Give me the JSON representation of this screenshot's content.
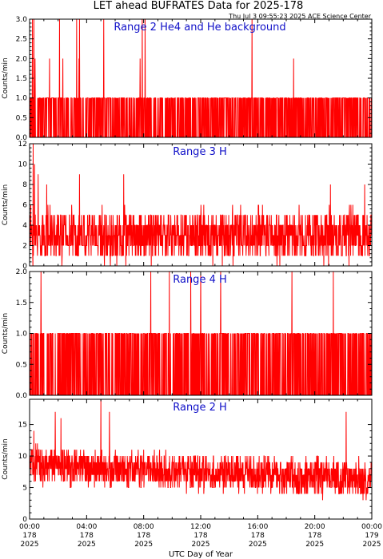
{
  "title": "LET ahead BUFRATES Data for 2025-178",
  "timestamp": "Thu Jul  3 09:55:23 2025 ACE Science Center",
  "xlabel": "UTC Day of Year",
  "x_ticks": [
    {
      "time": "00:00",
      "day": "178",
      "year": "2025"
    },
    {
      "time": "04:00",
      "day": "178",
      "year": "2025"
    },
    {
      "time": "08:00",
      "day": "178",
      "year": "2025"
    },
    {
      "time": "12:00",
      "day": "178",
      "year": "2025"
    },
    {
      "time": "16:00",
      "day": "178",
      "year": "2025"
    },
    {
      "time": "20:00",
      "day": "178",
      "year": "2025"
    },
    {
      "time": "00:00",
      "day": "179",
      "year": "2025"
    }
  ],
  "colors": {
    "line": "#ff0000",
    "label": "#1010c8",
    "axes": "#000000"
  },
  "chart_data": [
    {
      "type": "line",
      "label": "Range 2 He4 and He background",
      "ylabel": "Counts/min",
      "x_range": [
        0,
        24
      ],
      "ylim": [
        0,
        3
      ],
      "yticks": [
        "0.0",
        "0.5",
        "1.0",
        "1.5",
        "2.0",
        "2.5",
        "3.0"
      ],
      "baseline": 0.45,
      "spread": 0.85,
      "spikes": [
        [
          0.2,
          3
        ],
        [
          0.3,
          3
        ],
        [
          2.1,
          3
        ],
        [
          3.3,
          3
        ],
        [
          3.5,
          3
        ],
        [
          5.2,
          3
        ],
        [
          7.9,
          3
        ],
        [
          8.1,
          3
        ],
        [
          15.6,
          3
        ]
      ],
      "integer": true
    },
    {
      "type": "line",
      "label": "Range 3 H",
      "ylabel": "Counts/min",
      "x_range": [
        0,
        24
      ],
      "ylim": [
        0,
        12
      ],
      "yticks": [
        "0",
        "2",
        "4",
        "6",
        "8",
        "10",
        "12"
      ],
      "baseline": 3.0,
      "spread": 2.2,
      "spikes": [
        [
          0.25,
          12
        ],
        [
          0.35,
          10
        ],
        [
          0.6,
          9
        ],
        [
          1.2,
          8
        ],
        [
          3.5,
          9
        ],
        [
          6.6,
          9
        ],
        [
          21.1,
          8
        ],
        [
          23.5,
          8
        ]
      ],
      "integer": true
    },
    {
      "type": "line",
      "label": "Range 4 H",
      "ylabel": "Counts/min",
      "x_range": [
        0,
        24
      ],
      "ylim": [
        0,
        2
      ],
      "yticks": [
        "0.0",
        "0.5",
        "1.0",
        "1.5",
        "2.0"
      ],
      "baseline": 0.35,
      "spread": 0.75,
      "spikes": [
        [
          0.8,
          2
        ],
        [
          8.5,
          2
        ],
        [
          9.8,
          2
        ],
        [
          11.3,
          2
        ],
        [
          12.0,
          2
        ],
        [
          13.4,
          2
        ],
        [
          18.4,
          2
        ],
        [
          21.3,
          2
        ]
      ],
      "integer": true
    },
    {
      "type": "line",
      "label": "Range 2 H",
      "ylabel": "Counts/min",
      "x_range": [
        0,
        24
      ],
      "ylim": [
        0,
        19
      ],
      "yticks": [
        "0",
        "5",
        "10",
        "15"
      ],
      "baseline_start": 8.5,
      "baseline_end": 6.3,
      "spread": 2.6,
      "spikes": [
        [
          5.0,
          19
        ],
        [
          5.6,
          17
        ],
        [
          1.8,
          17
        ],
        [
          2.2,
          16
        ],
        [
          22.2,
          17
        ],
        [
          0.3,
          14
        ]
      ],
      "integer": true
    }
  ]
}
